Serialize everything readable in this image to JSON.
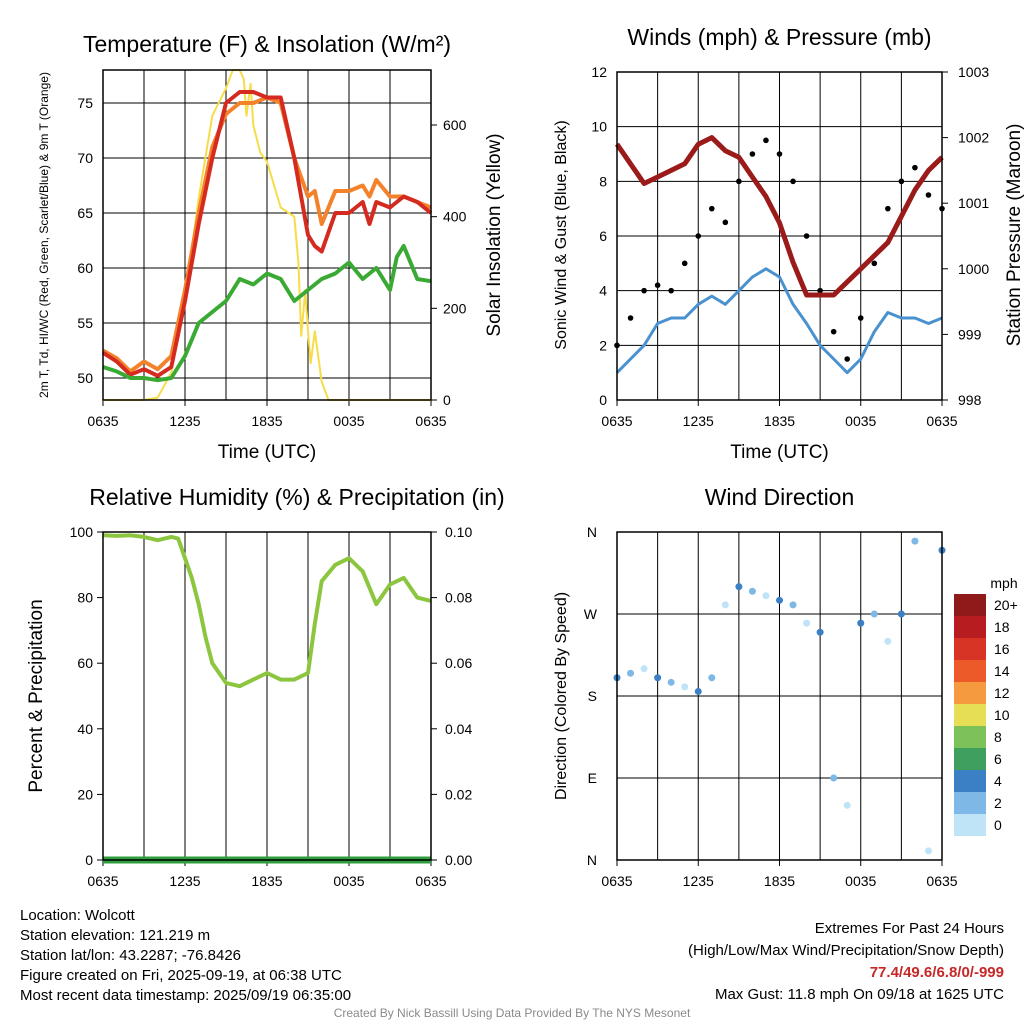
{
  "colors": {
    "red": "#d42a20",
    "orange": "#f3822a",
    "green": "#3aaa35",
    "yellow": "#f7dc4a",
    "blue": "#4a92cf",
    "maroon": "#9b1b1b",
    "black": "#000000",
    "rh": "#8cc63f",
    "precip": "#2f9e3f"
  },
  "x_ticks": [
    "0635",
    "1235",
    "1835",
    "0035",
    "0635"
  ],
  "chart_data": [
    {
      "type": "line",
      "title": "Temperature (F) & Insolation (W/m²)",
      "xlabel": "Time (UTC)",
      "ylabel": "2m T, Td, HI/WC (Red, Green, Scarlet/Blue) & 9m T (Orange)",
      "y2label": "Solar Insolation (Yellow)",
      "ylim": [
        48,
        78
      ],
      "y2lim": [
        0,
        720
      ],
      "y_ticks": [
        50,
        55,
        60,
        65,
        70,
        75
      ],
      "y2_ticks": [
        0,
        200,
        400,
        600
      ],
      "xlim_hours": [
        0,
        24
      ],
      "series": [
        {
          "name": "Solar Insolation",
          "axis": "right",
          "color": "yellow",
          "x": [
            0,
            3,
            4,
            5,
            6,
            7,
            8,
            9,
            9.5,
            10,
            10.3,
            10.5,
            10.8,
            11,
            11.5,
            12,
            13,
            14,
            14.3,
            14.5,
            14.8,
            15,
            15.2,
            15.5,
            16,
            16.5,
            17,
            24
          ],
          "y": [
            0,
            0,
            5,
            60,
            220,
            440,
            620,
            680,
            720,
            720,
            700,
            620,
            690,
            600,
            540,
            520,
            420,
            400,
            300,
            140,
            240,
            150,
            80,
            150,
            40,
            0,
            0,
            0
          ]
        },
        {
          "name": "9m T",
          "axis": "left",
          "color": "orange",
          "x": [
            0,
            1,
            2,
            3,
            4,
            5,
            6,
            7,
            8,
            9,
            10,
            11,
            12,
            13,
            14,
            15,
            15.5,
            16,
            17,
            18,
            19,
            19.5,
            20,
            21,
            22,
            23,
            24
          ],
          "y": [
            52.5,
            51.8,
            50.6,
            51.5,
            50.8,
            52,
            58,
            65,
            71,
            74,
            75,
            75,
            75.5,
            75,
            70,
            66.5,
            67,
            64,
            67,
            67,
            67.5,
            66.5,
            68,
            66.5,
            66.5,
            66,
            65.5
          ]
        },
        {
          "name": "2m T",
          "axis": "left",
          "color": "red",
          "x": [
            0,
            1,
            2,
            3,
            4,
            5,
            6,
            7,
            8,
            9,
            10,
            11,
            12,
            13,
            14,
            15,
            15.5,
            16,
            17,
            18,
            19,
            19.5,
            20,
            21,
            22,
            23,
            24
          ],
          "y": [
            52.3,
            51.5,
            50.3,
            50.8,
            50.2,
            51,
            57,
            64,
            70,
            75,
            76,
            76,
            75.5,
            75.5,
            70,
            63,
            62,
            61.5,
            65,
            65,
            66,
            64,
            66,
            65.5,
            66.5,
            66,
            65
          ]
        },
        {
          "name": "2m Td",
          "axis": "left",
          "color": "green",
          "x": [
            0,
            1,
            2,
            3,
            4,
            5,
            6,
            7,
            8,
            9,
            10,
            11,
            12,
            13,
            14,
            15,
            16,
            17,
            18,
            19,
            20,
            21,
            21.5,
            22,
            23,
            24
          ],
          "y": [
            51,
            50.6,
            50,
            50,
            49.8,
            50,
            52,
            55,
            56,
            57,
            59,
            58.5,
            59.5,
            59,
            57,
            58,
            59,
            59.5,
            60.5,
            59,
            60,
            58,
            61,
            62,
            59,
            58.8
          ]
        }
      ]
    },
    {
      "type": "scatter",
      "title": "Winds (mph) & Pressure (mb)",
      "xlabel": "Time (UTC)",
      "ylabel": "Sonic Wind & Gust (Blue, Black)",
      "y2label": "Station Pressure (Maroon)",
      "ylim": [
        0,
        12
      ],
      "y2lim": [
        998,
        1003
      ],
      "y_ticks": [
        0,
        2,
        4,
        6,
        8,
        10,
        12
      ],
      "y2_ticks": [
        998,
        999,
        1000,
        1001,
        1002,
        1003
      ],
      "xlim_hours": [
        0,
        24
      ],
      "series": [
        {
          "name": "Sonic Wind",
          "axis": "left",
          "color": "blue",
          "type": "line",
          "x": [
            0,
            1,
            2,
            3,
            4,
            5,
            6,
            7,
            8,
            9,
            10,
            11,
            12,
            13,
            14,
            15,
            16,
            17,
            18,
            19,
            20,
            21,
            22,
            23,
            24
          ],
          "y": [
            1,
            1.5,
            2,
            2.8,
            3,
            3,
            3.5,
            3.8,
            3.5,
            4,
            4.5,
            4.8,
            4.5,
            3.5,
            2.8,
            2,
            1.5,
            1,
            1.5,
            2.5,
            3.2,
            3,
            3,
            2.8,
            3
          ]
        },
        {
          "name": "Gust",
          "axis": "left",
          "color": "black",
          "type": "scatter",
          "x": [
            0,
            1,
            2,
            3,
            4,
            5,
            6,
            7,
            8,
            9,
            10,
            11,
            12,
            13,
            14,
            15,
            16,
            17,
            18,
            19,
            20,
            21,
            22,
            23,
            24
          ],
          "y": [
            2,
            3,
            4,
            4.2,
            4,
            5,
            6,
            7,
            6.5,
            8,
            9,
            9.5,
            9,
            8,
            6,
            4,
            2.5,
            1.5,
            3,
            5,
            7,
            8,
            8.5,
            7.5,
            7
          ]
        },
        {
          "name": "Station Pressure",
          "axis": "right",
          "color": "maroon",
          "type": "line",
          "x": [
            0,
            1,
            2,
            3,
            4,
            5,
            6,
            7,
            8,
            9,
            10,
            11,
            12,
            13,
            14,
            15,
            16,
            17,
            18,
            19,
            20,
            21,
            22,
            23,
            24
          ],
          "y": [
            1001.9,
            1001.6,
            1001.3,
            1001.4,
            1001.5,
            1001.6,
            1001.9,
            1002,
            1001.8,
            1001.7,
            1001.4,
            1001.1,
            1000.7,
            1000.1,
            999.6,
            999.6,
            999.6,
            999.8,
            1000,
            1000.2,
            1000.4,
            1000.8,
            1001.2,
            1001.5,
            1001.7
          ]
        }
      ]
    },
    {
      "type": "line",
      "title": "Relative Humidity (%) & Precipitation (in)",
      "ylabel": "Percent & Precipitation",
      "ylim": [
        0,
        100
      ],
      "y2lim": [
        0,
        0.1
      ],
      "y_ticks": [
        0,
        20,
        40,
        60,
        80,
        100
      ],
      "y2_ticks": [
        "0.00",
        "0.02",
        "0.04",
        "0.06",
        "0.08",
        "0.10"
      ],
      "xlim_hours": [
        0,
        24
      ],
      "series": [
        {
          "name": "Relative Humidity",
          "axis": "left",
          "color": "rh",
          "x": [
            0,
            1,
            2,
            3,
            4,
            5,
            5.5,
            6,
            6.5,
            7,
            7.5,
            8,
            9,
            10,
            11,
            12,
            13,
            14,
            15,
            15.5,
            16,
            17,
            18,
            19,
            20,
            21,
            22,
            23,
            24
          ],
          "y": [
            99,
            98.8,
            99,
            98.5,
            97.5,
            98.5,
            98,
            92,
            86,
            78,
            68,
            60,
            54,
            53,
            55,
            57,
            55,
            55,
            57,
            72,
            85,
            90,
            92,
            88,
            78,
            84,
            86,
            80,
            79
          ]
        },
        {
          "name": "Precipitation",
          "axis": "right",
          "color": "precip",
          "x": [
            0,
            24
          ],
          "y": [
            0,
            0
          ]
        }
      ]
    },
    {
      "type": "scatter",
      "title": "Wind Direction",
      "ylabel": "Direction (Colored By Speed)",
      "y_ticks": [
        "N",
        "E",
        "S",
        "W",
        "N"
      ],
      "ylim": [
        0,
        360
      ],
      "xlim_hours": [
        0,
        24
      ],
      "colorbar": {
        "unit": "mph",
        "labels": [
          "20+",
          "18",
          "16",
          "14",
          "12",
          "10",
          "8",
          "6",
          "4",
          "2",
          "0"
        ],
        "colors": [
          "#8e1a1a",
          "#b61c20",
          "#d73425",
          "#ec5a2a",
          "#f59a3f",
          "#e6df55",
          "#7cc259",
          "#3e9f5f",
          "#3b7fc4",
          "#7db8e6",
          "#bfe3f7"
        ]
      },
      "series": [
        {
          "name": "Wind Direction",
          "x": [
            0,
            1,
            2,
            3,
            4,
            5,
            6,
            7,
            8,
            9,
            10,
            11,
            12,
            13,
            14,
            15,
            16,
            17,
            18,
            19,
            20,
            21,
            22,
            23,
            24
          ],
          "y": [
            200,
            205,
            210,
            200,
            195,
            190,
            185,
            200,
            280,
            300,
            295,
            290,
            285,
            280,
            260,
            250,
            90,
            60,
            260,
            270,
            240,
            270,
            350,
            10,
            340
          ]
        }
      ]
    }
  ],
  "footer": {
    "location": "Location: Wolcott",
    "elevation": "Station elevation: 121.219 m",
    "latlon": "Station lat/lon: 43.2287; -76.8426",
    "created": "Figure created on Fri, 2025-09-19, at 06:38 UTC",
    "recent": "Most recent data timestamp: 2025/09/19 06:35:00",
    "extremes_title": "Extremes For Past 24 Hours",
    "extremes_sub": "(High/Low/Max Wind/Precipitation/Snow Depth)",
    "extremes_values": "77.4/49.6/6.8/0/-999",
    "max_gust": "Max Gust: 11.8 mph On 09/18 at 1625 UTC",
    "credit": "Created By Nick Bassill Using Data Provided By The NYS Mesonet"
  }
}
